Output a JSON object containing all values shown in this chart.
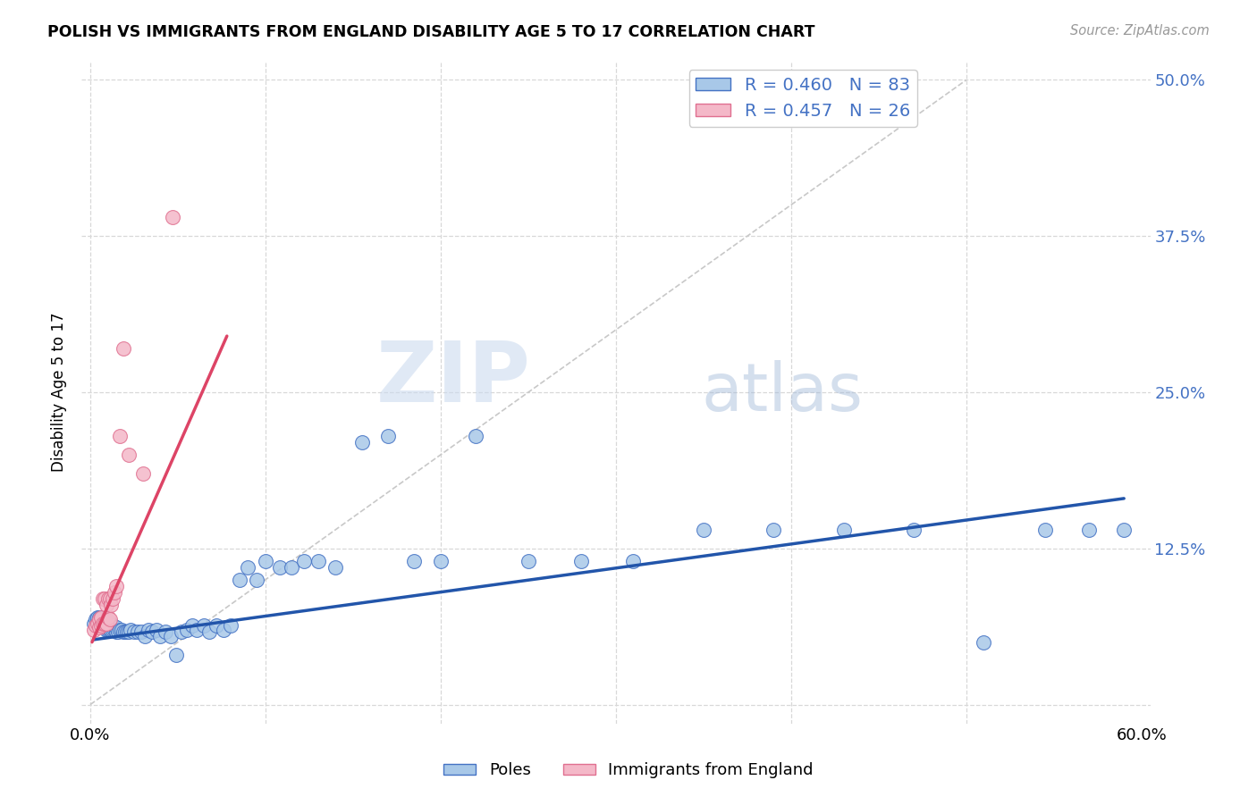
{
  "title": "POLISH VS IMMIGRANTS FROM ENGLAND DISABILITY AGE 5 TO 17 CORRELATION CHART",
  "source": "Source: ZipAtlas.com",
  "ylabel": "Disability Age 5 to 17",
  "xlim": [
    -0.005,
    0.605
  ],
  "ylim": [
    -0.015,
    0.515
  ],
  "xtick_positions": [
    0.0,
    0.1,
    0.2,
    0.3,
    0.4,
    0.5,
    0.6
  ],
  "xticklabels": [
    "0.0%",
    "",
    "",
    "",
    "",
    "",
    "60.0%"
  ],
  "ytick_positions": [
    0.0,
    0.125,
    0.25,
    0.375,
    0.5
  ],
  "yticklabels_right": [
    "",
    "12.5%",
    "25.0%",
    "37.5%",
    "50.0%"
  ],
  "blue_R": "0.460",
  "blue_N": "83",
  "pink_R": "0.457",
  "pink_N": "26",
  "blue_fill": "#a8c8e8",
  "blue_edge": "#4472c4",
  "pink_fill": "#f4b8c8",
  "pink_edge": "#e07090",
  "blue_line_color": "#2255aa",
  "pink_line_color": "#dd4466",
  "diag_line_color": "#c8c8c8",
  "grid_color": "#d8d8d8",
  "tick_label_color": "#4472c4",
  "legend_label_blue": "Poles",
  "legend_label_pink": "Immigrants from England",
  "watermark_zip": "ZIP",
  "watermark_atlas": "atlas",
  "poles_x": [
    0.002,
    0.003,
    0.004,
    0.004,
    0.005,
    0.005,
    0.006,
    0.006,
    0.006,
    0.007,
    0.007,
    0.007,
    0.008,
    0.008,
    0.008,
    0.009,
    0.009,
    0.009,
    0.01,
    0.01,
    0.01,
    0.011,
    0.011,
    0.012,
    0.012,
    0.013,
    0.013,
    0.014,
    0.015,
    0.015,
    0.016,
    0.017,
    0.018,
    0.019,
    0.02,
    0.021,
    0.022,
    0.023,
    0.025,
    0.027,
    0.029,
    0.031,
    0.033,
    0.035,
    0.038,
    0.04,
    0.043,
    0.046,
    0.049,
    0.052,
    0.055,
    0.058,
    0.061,
    0.065,
    0.068,
    0.072,
    0.076,
    0.08,
    0.085,
    0.09,
    0.095,
    0.1,
    0.108,
    0.115,
    0.122,
    0.13,
    0.14,
    0.155,
    0.17,
    0.185,
    0.2,
    0.22,
    0.25,
    0.28,
    0.31,
    0.35,
    0.39,
    0.43,
    0.47,
    0.51,
    0.545,
    0.57,
    0.59
  ],
  "poles_y": [
    0.065,
    0.068,
    0.067,
    0.07,
    0.065,
    0.07,
    0.063,
    0.066,
    0.07,
    0.062,
    0.066,
    0.07,
    0.062,
    0.065,
    0.068,
    0.06,
    0.063,
    0.067,
    0.06,
    0.063,
    0.067,
    0.06,
    0.065,
    0.06,
    0.065,
    0.06,
    0.063,
    0.06,
    0.058,
    0.062,
    0.058,
    0.06,
    0.06,
    0.058,
    0.058,
    0.058,
    0.058,
    0.06,
    0.058,
    0.058,
    0.058,
    0.055,
    0.06,
    0.058,
    0.06,
    0.055,
    0.058,
    0.055,
    0.04,
    0.058,
    0.06,
    0.063,
    0.06,
    0.063,
    0.058,
    0.063,
    0.06,
    0.063,
    0.1,
    0.11,
    0.1,
    0.115,
    0.11,
    0.11,
    0.115,
    0.115,
    0.11,
    0.21,
    0.215,
    0.115,
    0.115,
    0.215,
    0.115,
    0.115,
    0.115,
    0.14,
    0.14,
    0.14,
    0.14,
    0.05,
    0.14,
    0.14,
    0.14
  ],
  "england_x": [
    0.002,
    0.003,
    0.004,
    0.005,
    0.005,
    0.006,
    0.006,
    0.007,
    0.007,
    0.008,
    0.008,
    0.009,
    0.009,
    0.01,
    0.01,
    0.011,
    0.011,
    0.012,
    0.013,
    0.014,
    0.015,
    0.017,
    0.019,
    0.022,
    0.03,
    0.047
  ],
  "england_y": [
    0.06,
    0.063,
    0.065,
    0.062,
    0.068,
    0.063,
    0.07,
    0.065,
    0.085,
    0.065,
    0.085,
    0.065,
    0.08,
    0.07,
    0.085,
    0.068,
    0.085,
    0.08,
    0.085,
    0.09,
    0.095,
    0.215,
    0.285,
    0.2,
    0.185,
    0.39
  ],
  "blue_line_x": [
    0.002,
    0.59
  ],
  "blue_line_y": [
    0.052,
    0.165
  ],
  "pink_line_x": [
    0.001,
    0.078
  ],
  "pink_line_y": [
    0.05,
    0.295
  ]
}
